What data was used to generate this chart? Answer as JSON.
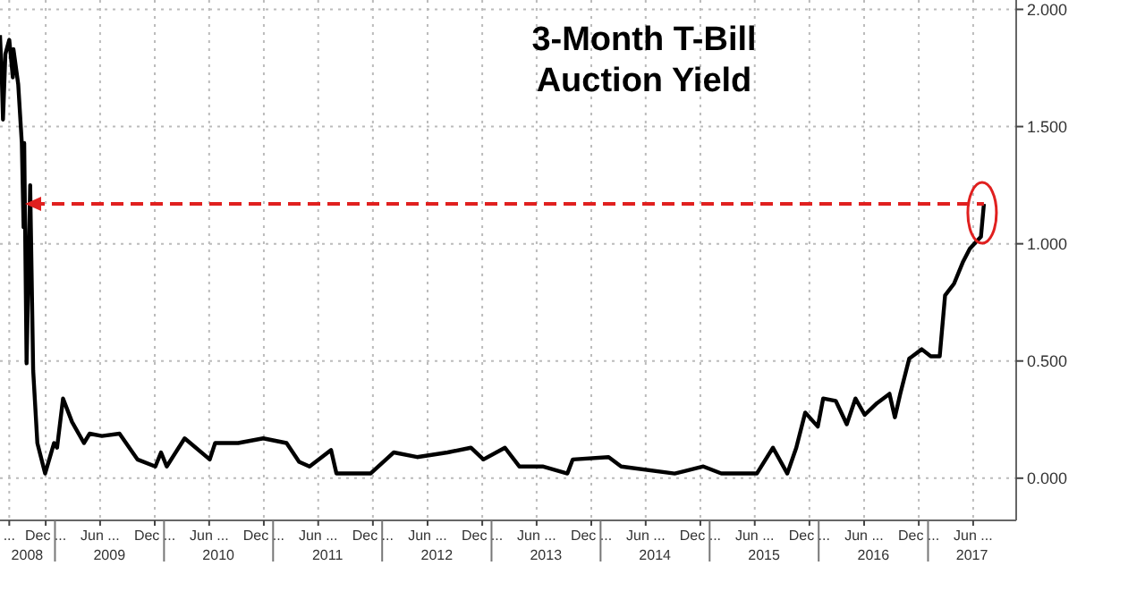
{
  "chart_data": {
    "type": "line",
    "title": "3-Month T-Bill\nAuction Yield",
    "x": [
      "2008-07-01",
      "2008-07-07",
      "2008-07-11",
      "2008-07-19",
      "2008-08-01",
      "2008-08-13",
      "2008-08-15",
      "2008-08-31",
      "2008-09-12",
      "2008-09-18",
      "2008-09-20",
      "2008-09-28",
      "2008-10-10",
      "2008-10-20",
      "2008-11-03",
      "2008-11-29",
      "2008-12-29",
      "2009-01-08",
      "2009-01-28",
      "2009-02-27",
      "2009-04-08",
      "2009-04-27",
      "2009-06-07",
      "2009-08-05",
      "2009-10-04",
      "2009-12-03",
      "2009-12-22",
      "2010-01-10",
      "2010-03-11",
      "2010-06-03",
      "2010-06-21",
      "2010-09-06",
      "2010-11-29",
      "2011-02-15",
      "2011-03-29",
      "2011-05-03",
      "2011-07-14",
      "2011-08-01",
      "2011-11-23",
      "2012-02-09",
      "2012-04-27",
      "2012-08-07",
      "2012-10-24",
      "2012-12-05",
      "2013-02-15",
      "2013-04-04",
      "2013-06-21",
      "2013-09-12",
      "2013-09-30",
      "2014-01-28",
      "2014-03-11",
      "2014-09-06",
      "2014-12-11",
      "2015-02-09",
      "2015-06-08",
      "2015-08-01",
      "2015-09-18",
      "2015-10-18",
      "2015-11-17",
      "2015-12-29",
      "2016-01-16",
      "2016-02-27",
      "2016-04-04",
      "2016-05-03",
      "2016-06-03",
      "2016-07-14",
      "2016-08-25",
      "2016-09-12",
      "2016-09-30",
      "2016-10-30",
      "2016-12-11",
      "2017-01-10",
      "2017-02-09",
      "2017-02-27",
      "2017-03-29",
      "2017-04-27",
      "2017-05-21",
      "2017-06-27",
      "2017-07-07"
    ],
    "values": [
      1.89,
      1.71,
      1.53,
      1.81,
      1.87,
      1.71,
      1.83,
      1.68,
      1.43,
      1.07,
      1.43,
      0.49,
      1.25,
      0.46,
      0.15,
      0.02,
      0.15,
      0.13,
      0.34,
      0.24,
      0.15,
      0.19,
      0.18,
      0.19,
      0.08,
      0.05,
      0.11,
      0.05,
      0.17,
      0.08,
      0.15,
      0.15,
      0.17,
      0.15,
      0.07,
      0.05,
      0.12,
      0.02,
      0.02,
      0.11,
      0.09,
      0.11,
      0.13,
      0.08,
      0.13,
      0.05,
      0.05,
      0.02,
      0.08,
      0.09,
      0.05,
      0.02,
      0.05,
      0.02,
      0.02,
      0.13,
      0.02,
      0.13,
      0.28,
      0.22,
      0.34,
      0.33,
      0.23,
      0.34,
      0.27,
      0.32,
      0.36,
      0.26,
      0.36,
      0.51,
      0.55,
      0.52,
      0.52,
      0.78,
      0.83,
      0.92,
      0.98,
      1.03,
      1.17
    ],
    "color": "#000000",
    "xlim": [
      "2008-07-01",
      "2017-10-23"
    ],
    "ylim": [
      -0.18,
      2.04
    ],
    "xticks": [
      {
        "value": "2008-08-01",
        "label": "..."
      },
      {
        "value": "2008-12-01",
        "label": "Dec ..."
      },
      {
        "value": "2009-06-01",
        "label": "Jun ..."
      },
      {
        "value": "2009-12-01",
        "label": "Dec ..."
      },
      {
        "value": "2010-06-01",
        "label": "Jun ..."
      },
      {
        "value": "2010-12-01",
        "label": "Dec ..."
      },
      {
        "value": "2011-06-01",
        "label": "Jun ..."
      },
      {
        "value": "2011-12-01",
        "label": "Dec ..."
      },
      {
        "value": "2012-06-01",
        "label": "Jun ..."
      },
      {
        "value": "2012-12-01",
        "label": "Dec ..."
      },
      {
        "value": "2013-06-01",
        "label": "Jun ..."
      },
      {
        "value": "2013-12-01",
        "label": "Dec ..."
      },
      {
        "value": "2014-06-01",
        "label": "Jun ..."
      },
      {
        "value": "2014-12-01",
        "label": "Dec ..."
      },
      {
        "value": "2015-06-01",
        "label": "Jun ..."
      },
      {
        "value": "2015-12-01",
        "label": "Dec ..."
      },
      {
        "value": "2016-06-01",
        "label": "Jun ..."
      },
      {
        "value": "2016-12-01",
        "label": "Dec ..."
      },
      {
        "value": "2017-06-01",
        "label": "Jun ..."
      }
    ],
    "x2lim": [
      "2008-07-01",
      "2017-10-23"
    ],
    "x2ticks": [
      {
        "value": "2008-09-30",
        "label": "2008"
      },
      {
        "value": "2009-07-02",
        "label": "2009"
      },
      {
        "value": "2010-07-02",
        "label": "2010"
      },
      {
        "value": "2011-07-02",
        "label": "2011"
      },
      {
        "value": "2012-07-02",
        "label": "2012"
      },
      {
        "value": "2013-07-02",
        "label": "2013"
      },
      {
        "value": "2014-07-02",
        "label": "2014"
      },
      {
        "value": "2015-07-02",
        "label": "2015"
      },
      {
        "value": "2016-07-02",
        "label": "2016"
      },
      {
        "value": "2017-05-28",
        "label": "2017"
      }
    ],
    "yticks": [
      {
        "value": 0,
        "label": "0.000"
      },
      {
        "value": 0.5,
        "label": "0.500"
      },
      {
        "value": 1,
        "label": "1.000"
      },
      {
        "value": 1.5,
        "label": "1.500"
      },
      {
        "value": 2,
        "label": "2.000"
      }
    ],
    "ref_lines": [
      {
        "axis": "y",
        "value": 1.17,
        "color": "#e0201f",
        "line_style": "dashed"
      }
    ],
    "grid": true,
    "line_style": "solid"
  }
}
